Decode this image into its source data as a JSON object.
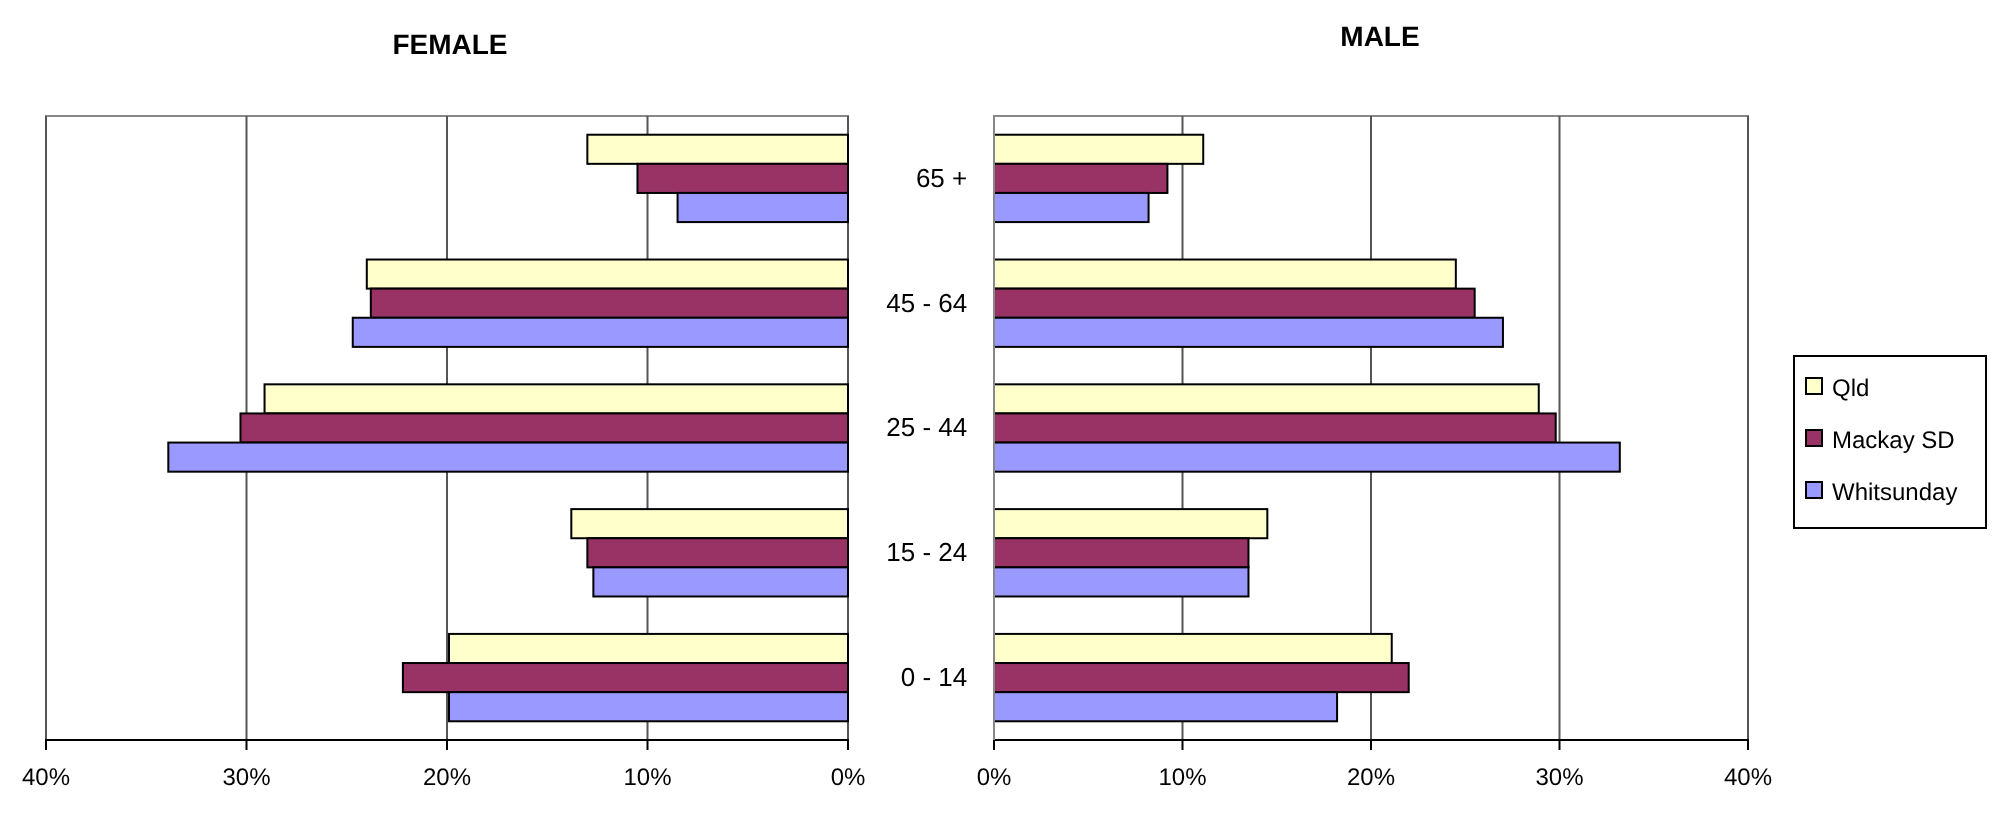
{
  "chart_data": [
    {
      "type": "bar",
      "orientation": "horizontal",
      "title": "FEMALE",
      "categories": [
        null,
        null,
        null,
        null,
        null
      ],
      "series": [
        {
          "color": "#ffffcc",
          "values": [
            13.0,
            24.0,
            29.1,
            13.8,
            19.9
          ]
        },
        {
          "color": "#993366",
          "values": [
            10.5,
            23.8,
            30.3,
            13.0,
            22.2
          ]
        },
        {
          "color": "#9999ff",
          "values": [
            8.5,
            24.7,
            33.9,
            12.7,
            19.9
          ]
        }
      ],
      "xlim": [
        40,
        0
      ],
      "xticks": [
        {
          "value": 40,
          "label": "40%"
        },
        {
          "value": 30,
          "label": "30%"
        },
        {
          "value": 20,
          "label": "20%"
        },
        {
          "value": 10,
          "label": "10%"
        },
        {
          "value": 0,
          "label": "0%"
        }
      ],
      "grid": "x",
      "tick_labels": "x"
    },
    {
      "type": "bar",
      "orientation": "horizontal",
      "title": "MALE",
      "categories": [
        "65 +",
        "45 - 64",
        "25 - 44",
        "15 - 24",
        "0 - 14"
      ],
      "series": [
        {
          "name": "Qld",
          "color": "#ffffcc",
          "values": [
            11.1,
            24.5,
            28.9,
            14.5,
            21.1
          ]
        },
        {
          "name": "Mackay SD",
          "color": "#993366",
          "values": [
            9.2,
            25.5,
            29.8,
            13.5,
            22.0
          ]
        },
        {
          "name": "Whitsunday",
          "color": "#9999ff",
          "values": [
            8.2,
            27.0,
            33.2,
            13.5,
            18.2
          ]
        }
      ],
      "xlim": [
        0,
        40
      ],
      "xticks": [
        {
          "value": 0,
          "label": "0%"
        },
        {
          "value": 10,
          "label": "10%"
        },
        {
          "value": 20,
          "label": "20%"
        },
        {
          "value": 30,
          "label": "30%"
        },
        {
          "value": 40,
          "label": "40%"
        }
      ],
      "grid": "x",
      "legend": "right"
    }
  ]
}
